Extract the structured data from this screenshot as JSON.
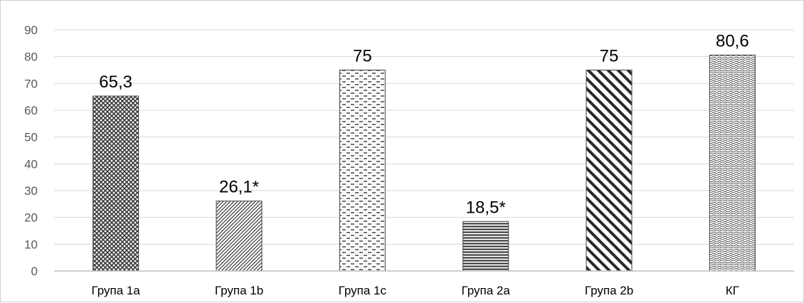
{
  "chart_data": {
    "type": "bar",
    "categories": [
      "Група 1а",
      "Група 1b",
      "Група 1с",
      "Група 2а",
      "Група 2b",
      "КГ"
    ],
    "values": [
      65.3,
      26.1,
      75,
      18.5,
      75,
      80.6
    ],
    "data_labels": [
      "65,3",
      "26,1*",
      "75",
      "18,5*",
      "75",
      "80,6"
    ],
    "patterns": [
      "crosshatch",
      "diagonal-fine",
      "dashed-horizontal",
      "horizontal-lines",
      "diagonal-bold",
      "wave"
    ],
    "ylim": [
      0,
      90
    ],
    "yticks": [
      0,
      10,
      20,
      30,
      40,
      50,
      60,
      70,
      80,
      90
    ],
    "grid": true,
    "legend": "none",
    "title": "",
    "xlabel": "",
    "ylabel": "",
    "colors": {
      "bar_stroke": "#404040",
      "pattern": "#333333",
      "grid": "#d9d9d9",
      "axis": "#bfbfbf"
    }
  }
}
